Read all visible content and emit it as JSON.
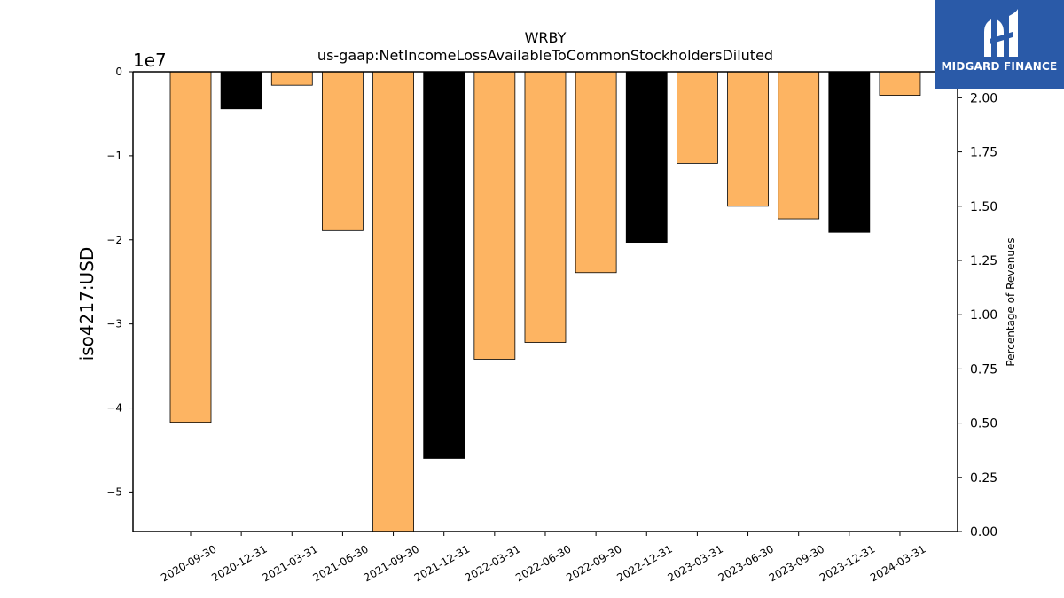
{
  "chart_data": {
    "type": "bar",
    "title": "WRBY",
    "subtitle": "us-gaap:NetIncomeLossAvailableToCommonStockholdersDiluted",
    "ylabel": "iso4217:USD",
    "y_offset_label": "1e7",
    "y2label": "Percentage of Revenues",
    "ylim": [
      -54700000,
      0
    ],
    "y_ticks": [
      "0",
      "−1",
      "−2",
      "−3",
      "−4",
      "−5"
    ],
    "y_tick_values": [
      0,
      -10000000,
      -20000000,
      -30000000,
      -40000000,
      -50000000
    ],
    "y2lim": [
      0,
      2.12
    ],
    "y2_ticks": [
      "0.00",
      "0.25",
      "0.50",
      "0.75",
      "1.00",
      "1.25",
      "1.50",
      "1.75",
      "2.00"
    ],
    "y2_tick_values": [
      0,
      0.25,
      0.5,
      0.75,
      1.0,
      1.25,
      1.5,
      1.75,
      2.0
    ],
    "categories": [
      "2020-09-30",
      "2020-12-31",
      "2021-03-31",
      "2021-06-30",
      "2021-09-30",
      "2021-12-31",
      "2022-03-31",
      "2022-06-30",
      "2022-09-30",
      "2022-12-31",
      "2023-03-31",
      "2023-06-30",
      "2023-09-30",
      "2023-12-31",
      "2024-03-31"
    ],
    "values": [
      -41700000,
      -4400000,
      -1600000,
      -18900000,
      -54700000,
      -46000000,
      -34200000,
      -32200000,
      -23900000,
      -20300000,
      -10900000,
      -16000000,
      -17500000,
      -19100000,
      -2800000
    ],
    "colors": [
      "#fdb462",
      "#000000",
      "#fdb462",
      "#fdb462",
      "#fdb462",
      "#000000",
      "#fdb462",
      "#fdb462",
      "#fdb462",
      "#000000",
      "#fdb462",
      "#fdb462",
      "#fdb462",
      "#000000",
      "#fdb462"
    ],
    "grid": false,
    "legend": "none"
  },
  "logo": {
    "text": "MIDGARD FINANCE",
    "icon": "midgard-logo-icon"
  }
}
